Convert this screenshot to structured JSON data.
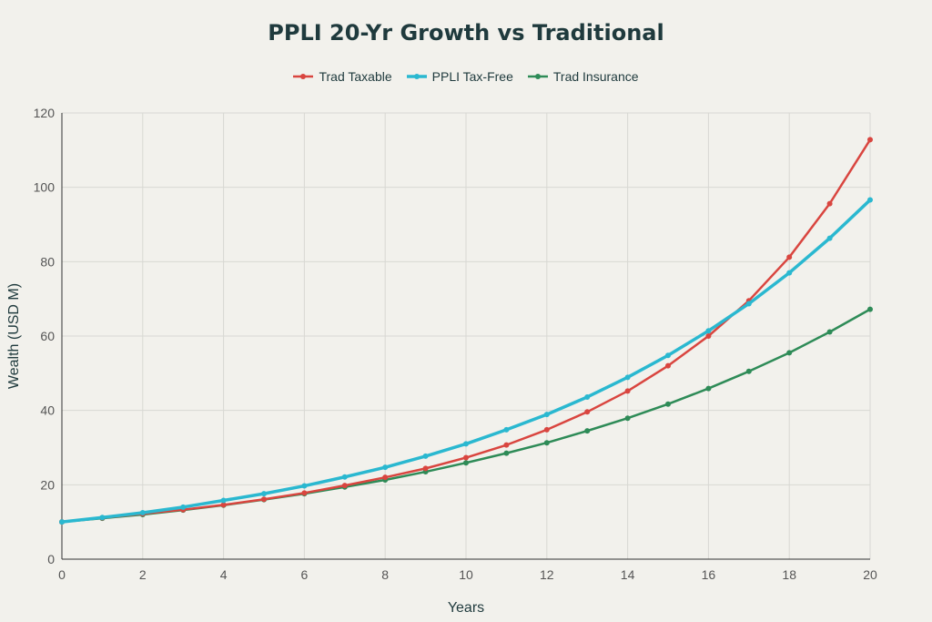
{
  "chart_data": {
    "type": "line",
    "title": "PPLI 20-Yr Growth vs Traditional",
    "xlabel": "Years",
    "ylabel": "Wealth (USD M)",
    "xlim": [
      0,
      20
    ],
    "ylim": [
      0,
      120
    ],
    "xticks": [
      0,
      2,
      4,
      6,
      8,
      10,
      12,
      14,
      16,
      18,
      20
    ],
    "yticks": [
      0,
      20,
      40,
      60,
      80,
      100,
      120
    ],
    "grid": true,
    "legend_position": "top-center",
    "x": [
      0,
      1,
      2,
      3,
      4,
      5,
      6,
      7,
      8,
      9,
      10,
      11,
      12,
      13,
      14,
      15,
      16,
      17,
      18,
      19,
      20
    ],
    "series": [
      {
        "name": "Trad Taxable",
        "color": "#d9453f",
        "values": [
          10,
          11.1,
          12.2,
          13.3,
          14.6,
          16.1,
          17.8,
          19.8,
          22,
          24.4,
          27.3,
          30.7,
          34.8,
          39.6,
          45.2,
          52,
          60,
          69.5,
          81.2,
          95.6,
          112.8
        ]
      },
      {
        "name": "PPLI Tax-Free",
        "color": "#2ab8d0",
        "values": [
          10,
          11.2,
          12.5,
          14,
          15.8,
          17.6,
          19.7,
          22.1,
          24.7,
          27.7,
          31,
          34.8,
          38.9,
          43.6,
          48.9,
          54.8,
          61.4,
          68.7,
          77,
          86.3,
          96.6
        ]
      },
      {
        "name": "Trad Insurance",
        "color": "#2e8b57",
        "values": [
          10,
          11,
          12,
          13.2,
          14.5,
          16,
          17.6,
          19.4,
          21.3,
          23.5,
          25.9,
          28.5,
          31.3,
          34.5,
          37.9,
          41.7,
          45.9,
          50.5,
          55.5,
          61.1,
          67.2
        ]
      }
    ]
  }
}
